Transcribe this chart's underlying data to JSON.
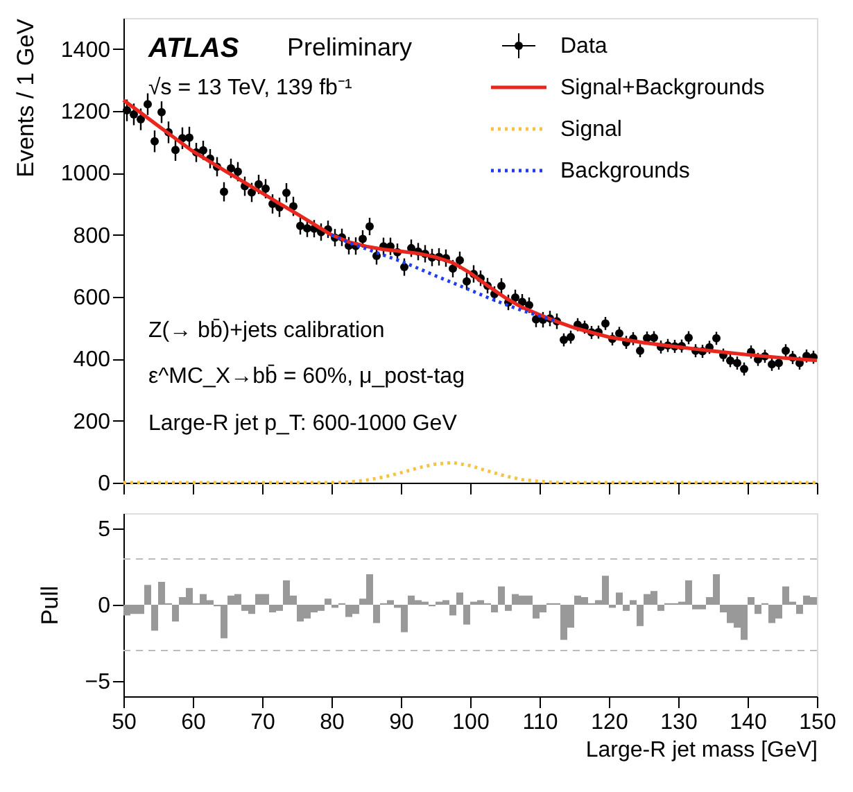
{
  "chart_data": [
    {
      "type": "scatter",
      "ylabel": "Events / 1 GeV",
      "xlim": [
        50,
        150
      ],
      "xticks": [
        50,
        60,
        70,
        80,
        90,
        100,
        110,
        120,
        130,
        140,
        150
      ],
      "ylim": [
        0,
        1500
      ],
      "yticks": [
        0,
        200,
        400,
        600,
        800,
        1000,
        1200,
        1400
      ],
      "tick_labels": "y",
      "grid": false,
      "legend": "top right",
      "annotations": [
        "ATLAS",
        "Preliminary",
        "√s = 13 TeV, 139 fb⁻¹",
        "Z(→ bb̄)+jets calibration",
        "ε^MC_X→bb̄ = 60%, μ_post-tag",
        "Large-R jet p_T: 600-1000 GeV"
      ],
      "series": [
        {
          "name": "Data",
          "type": "scatter",
          "color": "#000000",
          "marker": "circle",
          "x": [
            50.5,
            51.5,
            52.5,
            53.5,
            54.5,
            55.5,
            56.5,
            57.5,
            58.5,
            59.5,
            60.5,
            61.5,
            62.5,
            63.5,
            64.5,
            65.5,
            66.5,
            67.5,
            68.5,
            69.5,
            70.5,
            71.5,
            72.5,
            73.5,
            74.5,
            75.5,
            76.5,
            77.5,
            78.5,
            79.5,
            80.5,
            81.5,
            82.5,
            83.5,
            84.5,
            85.5,
            86.5,
            87.5,
            88.5,
            89.5,
            90.5,
            91.5,
            92.5,
            93.5,
            94.5,
            95.5,
            96.5,
            97.5,
            98.5,
            99.5,
            100.5,
            101.5,
            102.5,
            103.5,
            104.5,
            105.5,
            106.5,
            107.5,
            108.5,
            109.5,
            110.5,
            111.5,
            112.5,
            113.5,
            114.5,
            115.5,
            116.5,
            117.5,
            118.5,
            119.5,
            120.5,
            121.5,
            122.5,
            123.5,
            124.5,
            125.5,
            126.5,
            127.5,
            128.5,
            129.5,
            130.5,
            131.5,
            132.5,
            133.5,
            134.5,
            135.5,
            136.5,
            137.5,
            138.5,
            139.5,
            140.5,
            141.5,
            142.5,
            143.5,
            144.5,
            145.5,
            146.5,
            147.5,
            148.5,
            149.5
          ],
          "values": [
            1202,
            1189,
            1173,
            1222,
            1102,
            1196,
            1131,
            1074,
            1112,
            1114,
            1066,
            1073,
            1046,
            1020,
            939,
            1015,
            1004,
            957,
            937,
            963,
            949,
            900,
            889,
            936,
            892,
            829,
            821,
            820,
            809,
            818,
            791,
            792,
            765,
            764,
            787,
            827,
            732,
            763,
            763,
            744,
            696,
            757,
            746,
            739,
            727,
            729,
            725,
            691,
            718,
            650,
            674,
            660,
            636,
            609,
            635,
            582,
            598,
            584,
            573,
            527,
            526,
            530,
            521,
            461,
            470,
            510,
            502,
            485,
            486,
            514,
            464,
            482,
            453,
            465,
            426,
            467,
            468,
            438,
            443,
            440,
            441,
            468,
            426,
            424,
            437,
            466,
            412,
            394,
            386,
            367,
            422,
            398,
            408,
            382,
            386,
            426,
            404,
            386,
            409,
            405
          ],
          "errors": [
            35,
            35,
            35,
            35,
            35,
            35,
            35,
            35,
            35,
            35,
            31,
            31,
            31,
            31,
            31,
            31,
            31,
            31,
            31,
            31,
            31,
            31,
            31,
            31,
            31,
            28,
            28,
            28,
            28,
            28,
            28,
            28,
            28,
            28,
            28,
            28,
            28,
            28,
            28,
            28,
            28,
            28,
            28,
            28,
            28,
            28,
            28,
            28,
            28,
            28,
            28,
            25,
            25,
            25,
            25,
            25,
            25,
            25,
            25,
            25,
            25,
            25,
            25,
            21,
            21,
            21,
            21,
            21,
            21,
            21,
            21,
            21,
            21,
            21,
            21,
            21,
            21,
            21,
            21,
            21,
            21,
            21,
            21,
            21,
            21,
            21,
            21,
            21,
            21,
            21,
            21,
            21,
            21,
            21,
            21,
            21,
            21,
            21,
            21,
            21
          ]
        },
        {
          "name": "Signal+Backgrounds",
          "type": "line",
          "color": "#e8281e",
          "line_style": "solid",
          "x": [
            50,
            52.5,
            55,
            57.5,
            60,
            62.5,
            65,
            67.5,
            70,
            72.5,
            75,
            77.5,
            80,
            82.5,
            85,
            87.5,
            90,
            92.5,
            95,
            97.5,
            100,
            102.5,
            105,
            107.5,
            110,
            112.5,
            115,
            117.5,
            120,
            125,
            130,
            135,
            140,
            145,
            150
          ],
          "values": [
            1235,
            1194,
            1152,
            1111,
            1070,
            1036,
            1002,
            969,
            935,
            901,
            868,
            834,
            800,
            777,
            763,
            753,
            747,
            740,
            728,
            710,
            677,
            636,
            598,
            566,
            542,
            520,
            500,
            485,
            470,
            452,
            438,
            425,
            413,
            403,
            395
          ]
        },
        {
          "name": "Signal",
          "type": "line",
          "color": "#f5c242",
          "line_style": "dotted",
          "x": [
            50,
            80,
            82.5,
            85,
            87.5,
            90,
            92.5,
            95,
            97.5,
            100,
            102.5,
            105,
            107.5,
            110,
            112.5,
            150
          ],
          "values": [
            0,
            0,
            2,
            8,
            18,
            32,
            48,
            60,
            65,
            55,
            38,
            22,
            10,
            4,
            0,
            0
          ]
        },
        {
          "name": "Backgrounds",
          "type": "line",
          "color": "#1f3cf0",
          "line_style": "dotted",
          "x": [
            80,
            82.5,
            85,
            87.5,
            90,
            92.5,
            95,
            97.5,
            100,
            102.5,
            105,
            107.5,
            110,
            112.5
          ],
          "values": [
            800,
            775,
            755,
            735,
            715,
            692,
            668,
            645,
            622,
            598,
            576,
            556,
            538,
            520
          ]
        }
      ]
    },
    {
      "type": "bar",
      "ylabel": "Pull",
      "xlabel": "Large-R jet mass [GeV]",
      "xlim": [
        50,
        150
      ],
      "xticks": [
        50,
        60,
        70,
        80,
        90,
        100,
        110,
        120,
        130,
        140,
        150
      ],
      "ylim": [
        -6,
        6
      ],
      "yticks": [
        -5,
        0,
        5
      ],
      "grid": false,
      "ref_lines": [
        {
          "axis": "y",
          "value": 3,
          "color": "#bbbbbb",
          "line_style": "dashed"
        },
        {
          "axis": "y",
          "value": -3,
          "color": "#bbbbbb",
          "line_style": "dashed"
        }
      ],
      "series": [
        {
          "color": "#999999",
          "x": [
            50.5,
            51.5,
            52.5,
            53.5,
            54.5,
            55.5,
            56.5,
            57.5,
            58.5,
            59.5,
            60.5,
            61.5,
            62.5,
            63.5,
            64.5,
            65.5,
            66.5,
            67.5,
            68.5,
            69.5,
            70.5,
            71.5,
            72.5,
            73.5,
            74.5,
            75.5,
            76.5,
            77.5,
            78.5,
            79.5,
            80.5,
            81.5,
            82.5,
            83.5,
            84.5,
            85.5,
            86.5,
            87.5,
            88.5,
            89.5,
            90.5,
            91.5,
            92.5,
            93.5,
            94.5,
            95.5,
            96.5,
            97.5,
            98.5,
            99.5,
            100.5,
            101.5,
            102.5,
            103.5,
            104.5,
            105.5,
            106.5,
            107.5,
            108.5,
            109.5,
            110.5,
            111.5,
            112.5,
            113.5,
            114.5,
            115.5,
            116.5,
            117.5,
            118.5,
            119.5,
            120.5,
            121.5,
            122.5,
            123.5,
            124.5,
            125.5,
            126.5,
            127.5,
            128.5,
            129.5,
            130.5,
            131.5,
            132.5,
            133.5,
            134.5,
            135.5,
            136.5,
            137.5,
            138.5,
            139.5,
            140.5,
            141.5,
            142.5,
            143.5,
            144.5,
            145.5,
            146.5,
            147.5,
            148.5,
            149.5
          ],
          "values": [
            -0.7,
            -0.6,
            -0.6,
            1.3,
            -1.7,
            1.5,
            0.1,
            -1.1,
            0.5,
            1.1,
            0.1,
            0.7,
            0.3,
            -0.1,
            -2.2,
            0.6,
            0.7,
            -0.4,
            -0.6,
            0.7,
            0.7,
            -0.5,
            -0.4,
            1.6,
            0.6,
            -1.1,
            -0.9,
            -0.5,
            -0.4,
            0.4,
            -0.2,
            0.1,
            -0.8,
            -0.6,
            0.4,
            2.0,
            -1.2,
            0.1,
            0.3,
            -0.2,
            -1.8,
            0.6,
            0.3,
            0.2,
            -0.1,
            0.2,
            0.3,
            -0.7,
            0.8,
            -1.3,
            0.2,
            0.3,
            0.1,
            -0.5,
            1.2,
            -0.4,
            0.7,
            0.6,
            0.6,
            -0.9,
            -0.5,
            0.1,
            0.1,
            -2.3,
            -1.5,
            0.6,
            0.5,
            0.1,
            0.3,
            1.9,
            -0.2,
            0.8,
            -0.4,
            0.3,
            -1.4,
            0.7,
            0.9,
            -0.4,
            0.1,
            0.1,
            0.2,
            1.6,
            -0.3,
            -0.3,
            0.5,
            2.0,
            -0.5,
            -1.2,
            -1.5,
            -2.3,
            0.5,
            -0.6,
            0.1,
            -1.2,
            -0.9,
            1.2,
            0.2,
            -0.6,
            0.6,
            0.5
          ]
        }
      ]
    }
  ]
}
